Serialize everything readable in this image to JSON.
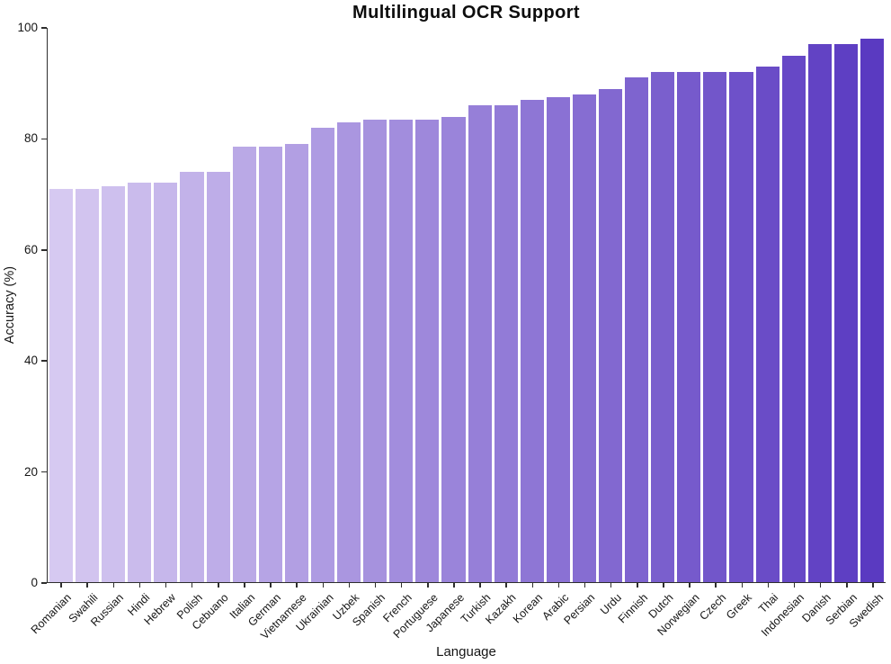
{
  "chart_data": {
    "type": "bar",
    "title": "Multilingual OCR Support",
    "xlabel": "Language",
    "ylabel": "Accuracy (%)",
    "ylim": [
      0,
      100
    ],
    "yticks": [
      0,
      20,
      40,
      60,
      80,
      100
    ],
    "grid": false,
    "legend": false,
    "categories": [
      "Romanian",
      "Swahili",
      "Russian",
      "Hindi",
      "Hebrew",
      "Polish",
      "Cebuano",
      "Italian",
      "German",
      "Vietnamese",
      "Ukrainian",
      "Uzbek",
      "Spanish",
      "French",
      "Portuguese",
      "Japanese",
      "Turkish",
      "Kazakh",
      "Korean",
      "Arabic",
      "Persian",
      "Urdu",
      "Finnish",
      "Dutch",
      "Norwegian",
      "Czech",
      "Greek",
      "Thai",
      "Indonesian",
      "Danish",
      "Serbian",
      "Swedish"
    ],
    "values": [
      71,
      71,
      71.5,
      72,
      72,
      74,
      74,
      78.5,
      78.5,
      79,
      82,
      83,
      83.5,
      83.5,
      83.5,
      84,
      86,
      86,
      87,
      87.5,
      88,
      89,
      91,
      92,
      92,
      92,
      92,
      93,
      95,
      97,
      97,
      98
    ],
    "colors": {
      "bar_gradient_start": "#d6c9f1",
      "bar_gradient_end": "#5a3ac1",
      "axis": "#2e2e2e",
      "text": "#151515",
      "background": "#ffffff"
    }
  }
}
